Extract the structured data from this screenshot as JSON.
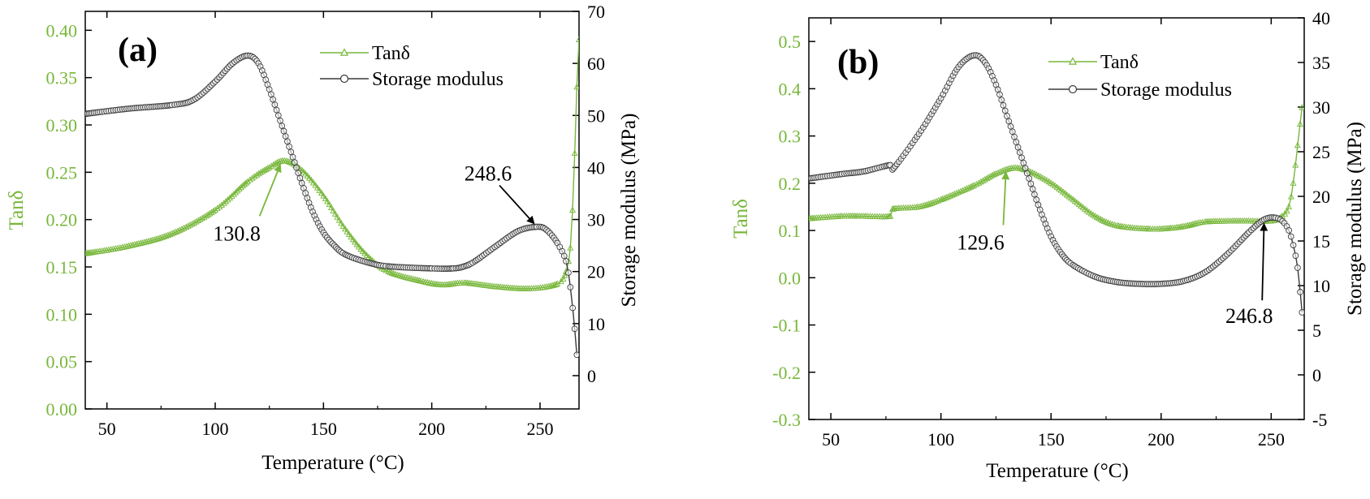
{
  "colors": {
    "tan": "#77b73a",
    "storage": "#3a3a3a",
    "axis": "#000000",
    "background": "#ffffff"
  },
  "chart_data": [
    {
      "id": "a",
      "type": "line",
      "panel_label": "(a)",
      "xlabel": "Temperature (°C)",
      "ylabel_left": "Tanδ",
      "ylabel_right": "Storage modulus (MPa)",
      "xlim": [
        40,
        268
      ],
      "xticks": [
        50,
        100,
        150,
        200,
        250
      ],
      "ylim_left": [
        0,
        0.42
      ],
      "yticks_left": [
        "0.00",
        "0.05",
        "0.10",
        "0.15",
        "0.20",
        "0.25",
        "0.30",
        "0.35",
        "0.40"
      ],
      "ylim_right": [
        -6.4,
        70
      ],
      "yticks_right": [
        "0",
        "10",
        "20",
        "30",
        "40",
        "50",
        "60",
        "70"
      ],
      "legend": [
        "Tanδ",
        "Storage modulus"
      ],
      "legend_position": "top-right",
      "series": [
        {
          "name": "Tanδ",
          "axis": "left",
          "marker": "triangle",
          "x": [
            40,
            60,
            80,
            100,
            115,
            125,
            132,
            140,
            150,
            160,
            170,
            180,
            195,
            205,
            215,
            230,
            245,
            258,
            262,
            264,
            265,
            266,
            267,
            268
          ],
          "y": [
            0.164,
            0.172,
            0.185,
            0.21,
            0.24,
            0.255,
            0.262,
            0.252,
            0.225,
            0.19,
            0.162,
            0.145,
            0.135,
            0.131,
            0.133,
            0.129,
            0.127,
            0.132,
            0.145,
            0.17,
            0.21,
            0.27,
            0.34,
            0.39
          ]
        },
        {
          "name": "Storage modulus",
          "axis": "right",
          "marker": "circle",
          "x": [
            40,
            60,
            80,
            90,
            100,
            108,
            115,
            120,
            125,
            130,
            135,
            140,
            145,
            150,
            155,
            160,
            170,
            180,
            200,
            210,
            215,
            220,
            230,
            240,
            248.6,
            253,
            258,
            262,
            264,
            266,
            267
          ],
          "y": [
            50.3,
            51.3,
            52.0,
            53.0,
            56.5,
            60.0,
            61.5,
            60.0,
            55.0,
            49.0,
            43.0,
            37.0,
            31.5,
            27.5,
            25.0,
            23.3,
            21.8,
            21.0,
            20.6,
            20.6,
            21.0,
            22.0,
            25.0,
            27.8,
            28.6,
            28.0,
            25.5,
            22.0,
            17.0,
            9.0,
            4.0
          ]
        }
      ],
      "annotations": [
        {
          "text": "130.8",
          "series": "Tanδ",
          "x": 130.8,
          "y": 0.262,
          "label_x": 110,
          "label_y": 0.178
        },
        {
          "text": "248.6",
          "series": "Storage modulus",
          "x": 248.6,
          "y": 28.6,
          "label_x": 226,
          "label_y": 37.5
        }
      ]
    },
    {
      "id": "b",
      "type": "line",
      "panel_label": "(b)",
      "xlabel": "Temperature (°C)",
      "ylabel_left": "Tanδ",
      "ylabel_right": "Storage modulus (MPa)",
      "xlim": [
        40,
        265
      ],
      "xticks": [
        50,
        100,
        150,
        200,
        250
      ],
      "ylim_left": [
        -0.3,
        0.55
      ],
      "yticks_left": [
        "-0.3",
        "-0.2",
        "-0.1",
        "0.0",
        "0.1",
        "0.2",
        "0.3",
        "0.4",
        "0.5"
      ],
      "ylim_right": [
        -5,
        40
      ],
      "yticks_right": [
        "-5",
        "0",
        "5",
        "10",
        "15",
        "20",
        "25",
        "30",
        "35",
        "40"
      ],
      "legend": [
        "Tanδ",
        "Storage modulus"
      ],
      "legend_position": "top-right",
      "series": [
        {
          "name": "Tanδ",
          "axis": "left",
          "marker": "triangle",
          "x": [
            40,
            55,
            65,
            77,
            78,
            90,
            100,
            115,
            125,
            133,
            140,
            150,
            160,
            170,
            180,
            195,
            205,
            212,
            220,
            235,
            250,
            255,
            258,
            260,
            262,
            264
          ],
          "y": [
            0.125,
            0.13,
            0.13,
            0.13,
            0.145,
            0.15,
            0.165,
            0.195,
            0.22,
            0.232,
            0.225,
            0.2,
            0.165,
            0.13,
            0.11,
            0.103,
            0.105,
            0.11,
            0.118,
            0.12,
            0.12,
            0.13,
            0.15,
            0.2,
            0.28,
            0.36
          ]
        },
        {
          "name": "Storage modulus",
          "axis": "right",
          "marker": "circle",
          "x": [
            40,
            55,
            65,
            77,
            78,
            90,
            100,
            108,
            115,
            120,
            125,
            130,
            135,
            140,
            145,
            150,
            155,
            160,
            170,
            180,
            190,
            200,
            210,
            220,
            230,
            240,
            246.8,
            252,
            256,
            259,
            262,
            264
          ],
          "y": [
            22.0,
            22.5,
            22.8,
            23.5,
            23.0,
            27.0,
            31.0,
            34.5,
            35.8,
            35.0,
            32.5,
            29.0,
            25.5,
            22.0,
            18.5,
            15.5,
            13.5,
            12.3,
            11.0,
            10.4,
            10.2,
            10.2,
            10.5,
            11.5,
            13.5,
            16.0,
            17.4,
            17.6,
            17.0,
            15.5,
            12.0,
            7.0
          ]
        }
      ],
      "annotations": [
        {
          "text": "129.6",
          "series": "Tanδ",
          "x": 129.6,
          "y": 0.232,
          "label_x": 118,
          "label_y": 0.06
        },
        {
          "text": "246.8",
          "series": "Storage modulus",
          "x": 246.8,
          "y": 17.4,
          "label_x": 240,
          "label_y": 5.8
        }
      ]
    }
  ]
}
